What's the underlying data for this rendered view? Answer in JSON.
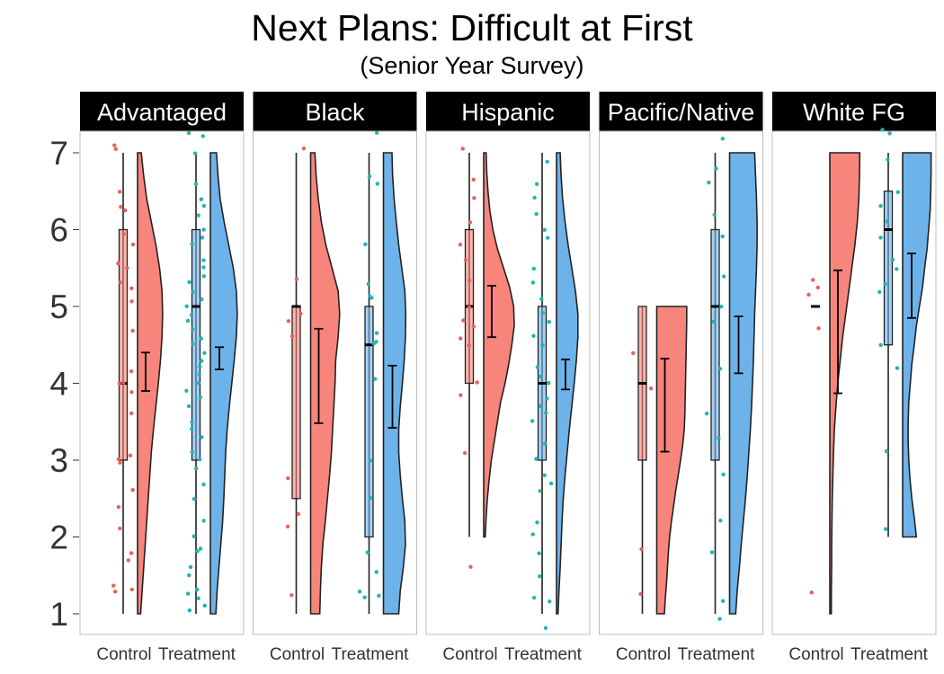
{
  "chart_data": {
    "type": "raincloud",
    "title": "Next Plans: Difficult at First",
    "subtitle": "(Senior Year Survey)",
    "ylim": [
      0.8,
      7.3
    ],
    "yticks": [
      1,
      2,
      3,
      4,
      5,
      6,
      7
    ],
    "groups": [
      "Control",
      "Treatment"
    ],
    "colors": {
      "Control": "#f8857c",
      "Treatment": "#6db3e9",
      "Control_dots": "#e8615b",
      "Treatment_dots": "#1fb5b5",
      "strip_bg": "#000000",
      "strip_text": "#ffffff"
    },
    "panels": [
      {
        "label": "Advantaged",
        "series": [
          {
            "group": "Control",
            "box": {
              "min": 1,
              "q1": 3,
              "median": 4,
              "q3": 6,
              "max": 7
            },
            "mean": 4.15,
            "ci": [
              3.9,
              4.4
            ],
            "density_range": [
              1,
              7
            ],
            "density": [
              0.1,
              0.15,
              0.2,
              0.25,
              0.3,
              0.35,
              0.4,
              0.45,
              0.52,
              0.6,
              0.68,
              0.75,
              0.8,
              0.82,
              0.8,
              0.72,
              0.6,
              0.45,
              0.3,
              0.2,
              0.12
            ],
            "points": [
              1.3,
              1.3,
              1.35,
              1.7,
              1.8,
              2.1,
              2.4,
              2.6,
              2.95,
              3.0,
              3.05,
              3.6,
              3.9,
              4.0,
              4.0,
              4.15,
              4.7,
              5.05,
              5.25,
              5.3,
              5.5,
              5.55,
              5.8,
              5.95,
              6.25,
              6.3,
              6.5,
              7.05,
              7.1
            ]
          },
          {
            "group": "Treatment",
            "box": {
              "min": 1,
              "q1": 3,
              "median": 5,
              "q3": 6,
              "max": 7
            },
            "mean": 4.32,
            "ci": [
              4.18,
              4.47
            ],
            "density_range": [
              1,
              7
            ],
            "density": [
              0.18,
              0.22,
              0.28,
              0.34,
              0.4,
              0.44,
              0.47,
              0.5,
              0.55,
              0.62,
              0.7,
              0.78,
              0.85,
              0.88,
              0.85,
              0.75,
              0.6,
              0.45,
              0.32,
              0.25,
              0.2
            ],
            "points": [
              1.05,
              1.1,
              1.2,
              1.25,
              1.3,
              1.5,
              1.6,
              1.8,
              1.85,
              2.0,
              2.2,
              2.5,
              2.7,
              2.9,
              3.0,
              3.1,
              3.3,
              3.4,
              3.5,
              3.7,
              3.8,
              3.9,
              4.0,
              4.1,
              4.2,
              4.3,
              4.4,
              4.5,
              4.6,
              4.7,
              4.8,
              4.9,
              5.0,
              5.1,
              5.2,
              5.3,
              5.4,
              5.5,
              5.6,
              5.8,
              5.9,
              6.0,
              6.2,
              6.3,
              6.4,
              6.6,
              7.0,
              7.2,
              7.25
            ]
          }
        ]
      },
      {
        "label": "Black",
        "series": [
          {
            "group": "Control",
            "box": {
              "min": 1,
              "q1": 2.5,
              "median": 5,
              "q3": 5,
              "max": 7
            },
            "mean": 4.1,
            "ci": [
              3.48,
              4.71
            ],
            "density_range": [
              1,
              7
            ],
            "density": [
              0.3,
              0.32,
              0.35,
              0.4,
              0.48,
              0.55,
              0.62,
              0.68,
              0.72,
              0.76,
              0.8,
              0.82,
              0.9,
              0.95,
              0.9,
              0.7,
              0.5,
              0.35,
              0.25,
              0.18,
              0.14
            ],
            "points": [
              1.25,
              2.15,
              2.3,
              2.75,
              4.6,
              4.8,
              4.9,
              5.35,
              7.05
            ]
          },
          {
            "group": "Treatment",
            "box": {
              "min": 1,
              "q1": 2,
              "median": 4.5,
              "q3": 5,
              "max": 7
            },
            "mean": 3.82,
            "ci": [
              3.42,
              4.23
            ],
            "density_range": [
              1,
              7
            ],
            "density": [
              0.5,
              0.55,
              0.65,
              0.72,
              0.7,
              0.62,
              0.55,
              0.5,
              0.5,
              0.55,
              0.62,
              0.68,
              0.72,
              0.73,
              0.7,
              0.6,
              0.5,
              0.42,
              0.35,
              0.3,
              0.28
            ],
            "points": [
              1.2,
              1.25,
              1.3,
              1.55,
              1.8,
              2.5,
              3.0,
              4.05,
              4.5,
              4.55,
              4.65,
              5.1,
              5.15,
              5.3,
              5.8,
              6.6,
              6.7,
              7.25
            ]
          }
        ]
      },
      {
        "label": "Hispanic",
        "series": [
          {
            "group": "Control",
            "box": {
              "min": 2,
              "q1": 4,
              "median": 5,
              "q3": 6,
              "max": 7
            },
            "mean": 4.95,
            "ci": [
              4.6,
              5.27
            ],
            "density_range": [
              2,
              7
            ],
            "density": [
              0.05,
              0.08,
              0.12,
              0.18,
              0.25,
              0.35,
              0.45,
              0.55,
              0.7,
              0.82,
              0.92,
              1.0,
              0.98,
              0.85,
              0.65,
              0.45,
              0.3,
              0.2,
              0.14,
              0.1,
              0.08
            ],
            "points": [
              1.6,
              3.1,
              3.85,
              4.0,
              4.5,
              4.6,
              4.75,
              4.8,
              5.0,
              5.35,
              5.6,
              5.8,
              6.1,
              6.4,
              6.65,
              7.05
            ]
          },
          {
            "group": "Treatment",
            "box": {
              "min": 1,
              "q1": 3,
              "median": 4,
              "q3": 5,
              "max": 7
            },
            "mean": 4.1,
            "ci": [
              3.92,
              4.31
            ],
            "density_range": [
              1,
              7
            ],
            "density": [
              0.05,
              0.08,
              0.12,
              0.15,
              0.18,
              0.22,
              0.28,
              0.35,
              0.42,
              0.5,
              0.58,
              0.65,
              0.7,
              0.7,
              0.62,
              0.5,
              0.38,
              0.28,
              0.2,
              0.15,
              0.12
            ],
            "points": [
              0.8,
              1.15,
              1.2,
              1.5,
              1.8,
              2.05,
              2.2,
              2.6,
              2.7,
              2.8,
              3.0,
              3.2,
              3.5,
              3.6,
              3.7,
              3.8,
              4.0,
              4.1,
              4.2,
              4.5,
              4.6,
              4.8,
              4.9,
              5.1,
              5.3,
              5.5,
              5.9,
              6.0,
              6.2,
              6.4,
              6.6,
              6.9
            ]
          }
        ]
      },
      {
        "label": "Pacific/Native",
        "series": [
          {
            "group": "Control",
            "box": {
              "min": 1,
              "q1": 3,
              "median": 4,
              "q3": 5,
              "max": 5
            },
            "mean": 3.72,
            "ci": [
              3.11,
              4.32
            ],
            "density_range": [
              1,
              5
            ],
            "density": [
              0.25,
              0.28,
              0.32,
              0.35,
              0.38,
              0.42,
              0.48,
              0.55,
              0.62,
              0.7,
              0.78,
              0.85,
              0.9,
              0.92,
              0.93,
              0.94,
              0.95,
              0.96,
              0.97,
              0.98,
              0.98
            ],
            "points": [
              1.25,
              1.85,
              3.95,
              4.4
            ]
          },
          {
            "group": "Treatment",
            "box": {
              "min": 1,
              "q1": 3,
              "median": 5,
              "q3": 6,
              "max": 7
            },
            "mean": 4.5,
            "ci": [
              4.13,
              4.87
            ],
            "density_range": [
              1,
              7
            ],
            "density": [
              0.2,
              0.25,
              0.32,
              0.38,
              0.45,
              0.52,
              0.58,
              0.63,
              0.68,
              0.72,
              0.75,
              0.78,
              0.8,
              0.82,
              0.85,
              0.88,
              0.9,
              0.9,
              0.88,
              0.85,
              0.82
            ],
            "points": [
              0.93,
              1.15,
              1.8,
              2.2,
              2.8,
              3.3,
              3.6,
              4.2,
              4.8,
              5.0,
              5.4,
              5.9,
              6.2,
              6.6,
              6.8,
              7.2
            ]
          }
        ]
      },
      {
        "label": "White FG",
        "series": [
          {
            "group": "Control",
            "box": {
              "min": 5,
              "q1": 5,
              "median": 5,
              "q3": 5,
              "max": 5
            },
            "mean": 4.65,
            "ci": [
              3.87,
              5.47
            ],
            "density_range": [
              1,
              7
            ],
            "density": [
              0.05,
              0.05,
              0.06,
              0.06,
              0.07,
              0.08,
              0.1,
              0.12,
              0.15,
              0.2,
              0.26,
              0.34,
              0.42,
              0.52,
              0.62,
              0.72,
              0.82,
              0.9,
              0.95,
              0.97,
              0.98
            ],
            "points": [
              1.27,
              4.7,
              5.15,
              5.25,
              5.35
            ]
          },
          {
            "group": "Treatment",
            "box": {
              "min": 2,
              "q1": 4.5,
              "median": 6,
              "q3": 6.5,
              "max": 7
            },
            "mean": 5.27,
            "ci": [
              4.85,
              5.69
            ],
            "density_range": [
              2,
              7
            ],
            "density": [
              0.45,
              0.38,
              0.3,
              0.24,
              0.2,
              0.18,
              0.18,
              0.2,
              0.25,
              0.3,
              0.38,
              0.45,
              0.55,
              0.65,
              0.72,
              0.8,
              0.85,
              0.9,
              0.92,
              0.93,
              0.93
            ],
            "points": [
              2.1,
              3.1,
              4.2,
              4.5,
              5.2,
              5.3,
              5.5,
              5.6,
              5.9,
              6.1,
              6.3,
              6.5,
              6.9,
              7.25,
              7.3
            ]
          }
        ]
      }
    ]
  }
}
